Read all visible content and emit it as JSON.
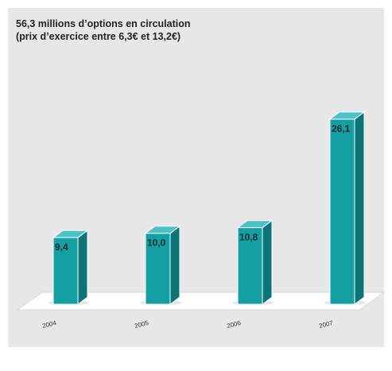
{
  "header": {
    "title_line1": "56,3 millions d’options en circulation",
    "title_line2": "(prix d’exercice entre 6,3€ et 13,2€)"
  },
  "colors": {
    "bar_front": "#149fa3",
    "bar_side": "#0c7477",
    "bar_top": "#4ac2c6",
    "panel_bg": "#e7e7e7",
    "floor": "#ffffff"
  },
  "chart_data": {
    "type": "bar",
    "categories": [
      "2004",
      "2005",
      "2006",
      "2007"
    ],
    "values": [
      9.4,
      10.0,
      10.8,
      26.1
    ],
    "value_labels": [
      "9,4",
      "10,0",
      "10,8",
      "26,1"
    ],
    "title": "56,3 millions d’options en circulation",
    "subtitle": "(prix d’exercice entre 6,3€ et 13,2€)",
    "xlabel": "",
    "ylabel": "",
    "ylim": [
      0,
      26.1
    ],
    "grid": false,
    "style": "3d"
  }
}
